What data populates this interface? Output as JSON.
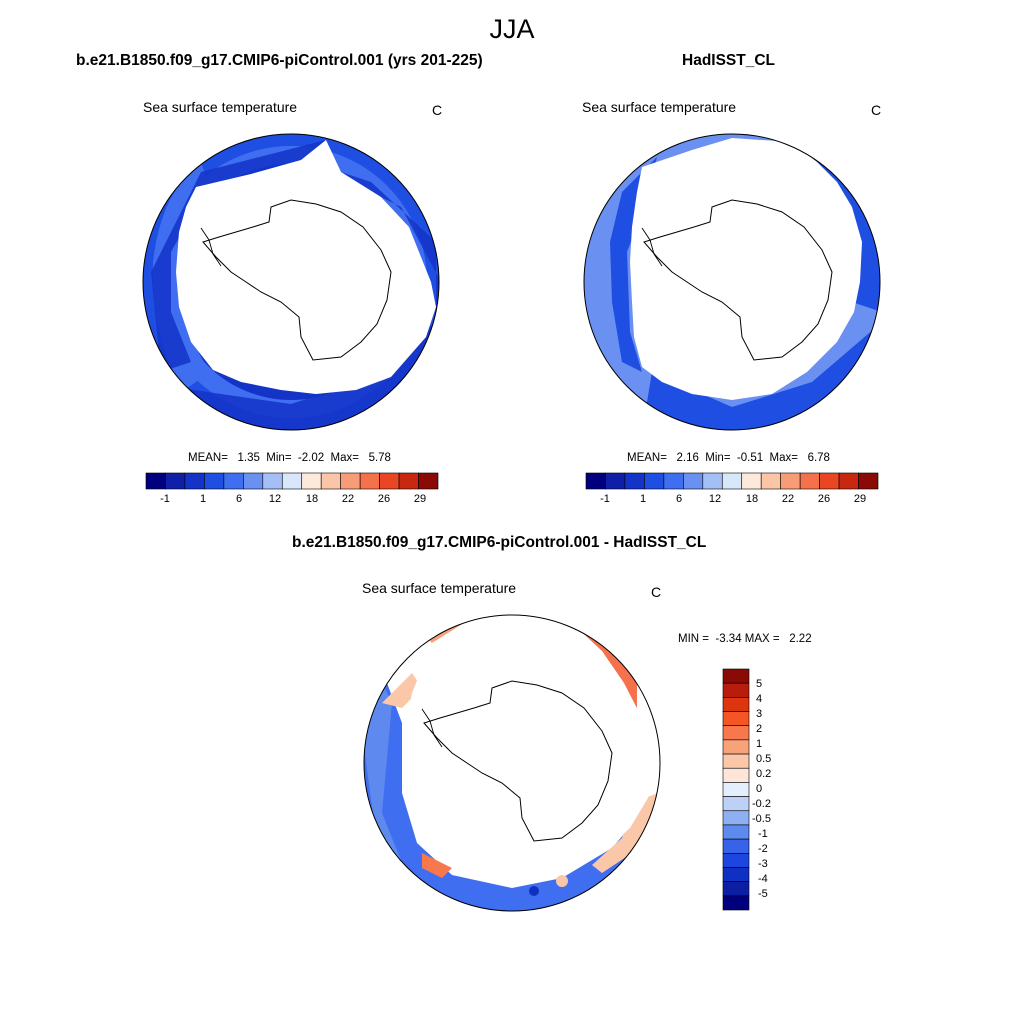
{
  "figure": {
    "title": "JJA"
  },
  "panels": [
    {
      "case_title": "b.e21.B1850.f09_g17.CMIP6-piControl.001 (yrs 201-225)",
      "variable": "Sea surface temperature",
      "units": "C",
      "stats": {
        "text": "MEAN=   1.35  Min=  -2.02  Max=   5.78",
        "mean": 1.35,
        "min": -2.02,
        "max": 5.78
      }
    },
    {
      "case_title": "HadISST_CL",
      "variable": "Sea surface temperature",
      "units": "C",
      "stats": {
        "text": "MEAN=   2.16  Min=  -0.51  Max=   6.78",
        "mean": 2.16,
        "min": -0.51,
        "max": 6.78
      }
    },
    {
      "case_title": "b.e21.B1850.f09_g17.CMIP6-piControl.001 - HadISST_CL",
      "variable": "Sea surface temperature",
      "units": "C",
      "stats": {
        "text": "MIN =  -3.34 MAX =   2.22",
        "min": -3.34,
        "max": 2.22
      }
    }
  ],
  "colorbar_sst": {
    "colors": [
      "#00007f",
      "#0f1fa8",
      "#1434c8",
      "#1f4ee3",
      "#3f6ff0",
      "#6a90f2",
      "#a4bff6",
      "#d8e7fb",
      "#fde9d9",
      "#fbc6a8",
      "#f89c78",
      "#f4714c",
      "#e94623",
      "#c82710",
      "#8a0a05"
    ],
    "tick_labels": [
      "-1",
      "1",
      "6",
      "12",
      "18",
      "22",
      "26",
      "29"
    ]
  },
  "colorbar_diff": {
    "colors_top_to_bottom": [
      "#8a0a05",
      "#b81c0c",
      "#dc3510",
      "#f45524",
      "#f6784c",
      "#f8a27a",
      "#fbc7a9",
      "#fde6d8",
      "#e4eefc",
      "#bcd0f8",
      "#8eaff2",
      "#5e89ef",
      "#3763ea",
      "#1d45df",
      "#1030c2",
      "#0a1fa2",
      "#00007f"
    ],
    "labels_top_to_bottom": [
      "5",
      "4",
      "3",
      "2",
      "1",
      "0.5",
      "0.2",
      "0",
      "-0.2",
      "-0.5",
      "-1",
      "-2",
      "-3",
      "-4",
      "-5"
    ]
  },
  "colors": {
    "ocean_cold": "#1f4ee3",
    "ocean_mid": "#3f6ff0",
    "ocean_light": "#6a90f2",
    "diff_neg": "#3f6ff0",
    "diff_pos": "#f4714c",
    "land": "#ffffff",
    "coast": "#000000"
  }
}
